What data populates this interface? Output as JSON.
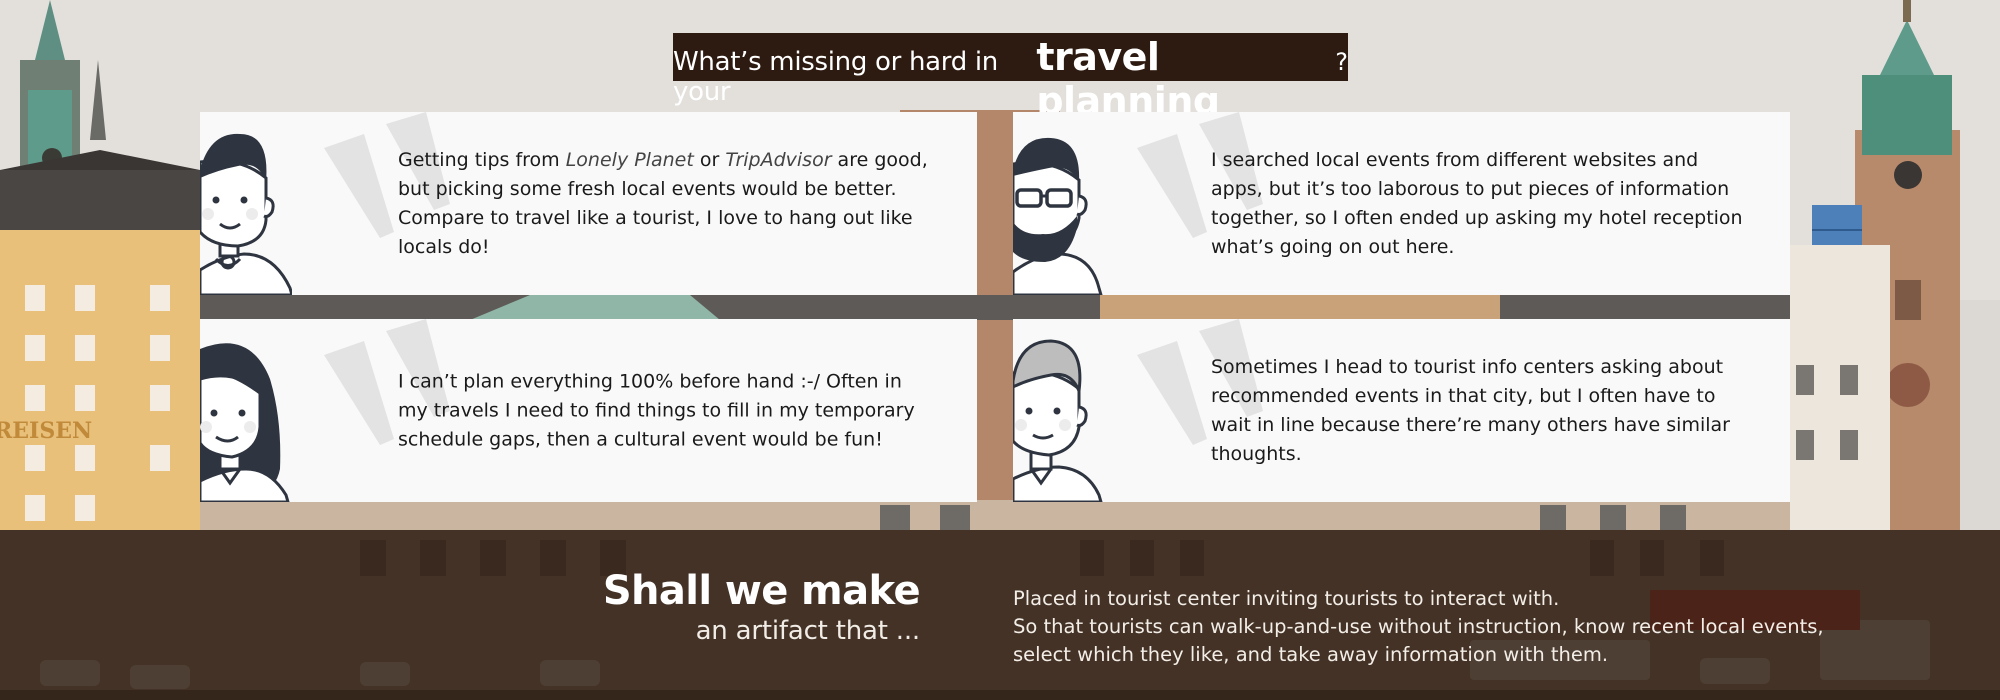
{
  "title": {
    "prefix": "What’s missing or hard in your",
    "emphasis": "travel planning",
    "suffix": "?"
  },
  "background": {
    "sign_text": "REISEN",
    "colors": {
      "sky": "#dcd9d5",
      "building_yellow": "#e9c07a",
      "brick": "#b5876a",
      "roof_dark": "#3a3634",
      "copper": "#5e9b8a"
    }
  },
  "quotes": [
    {
      "avatar": "boy-avatar",
      "parts": {
        "a": "Getting tips from ",
        "b": "Lonely Planet",
        "c": " or ",
        "d": "TripAdvisor",
        "e": " are good, but picking some fresh local events would be better. Compare to travel like a tourist, I love to hang out like locals do!"
      }
    },
    {
      "avatar": "bearded-man-avatar",
      "text": "I searched local events from different websites and apps, but it’s too laborous to put pieces of information together, so I often ended up asking my hotel reception what’s going on out here."
    },
    {
      "avatar": "woman-avatar",
      "text": "I can’t plan everything 100% before hand :-/ Often in my travels I need to find things to fill in my temporary schedule gaps, then a cultural event would be fun!"
    },
    {
      "avatar": "grey-haired-man-avatar",
      "text": "Sometimes I head to tourist info centers asking about recommended events in that city, but I often have to wait in line because there’re many others have similar thoughts."
    }
  ],
  "bottom": {
    "title": "Shall we make",
    "subtitle": "an artifact that ...",
    "lines": [
      "Placed in tourist center inviting tourists to interact with.",
      "So that tourists can walk-up-and-use without instruction, know recent local events,",
      "select which they like, and take away information with them."
    ]
  }
}
